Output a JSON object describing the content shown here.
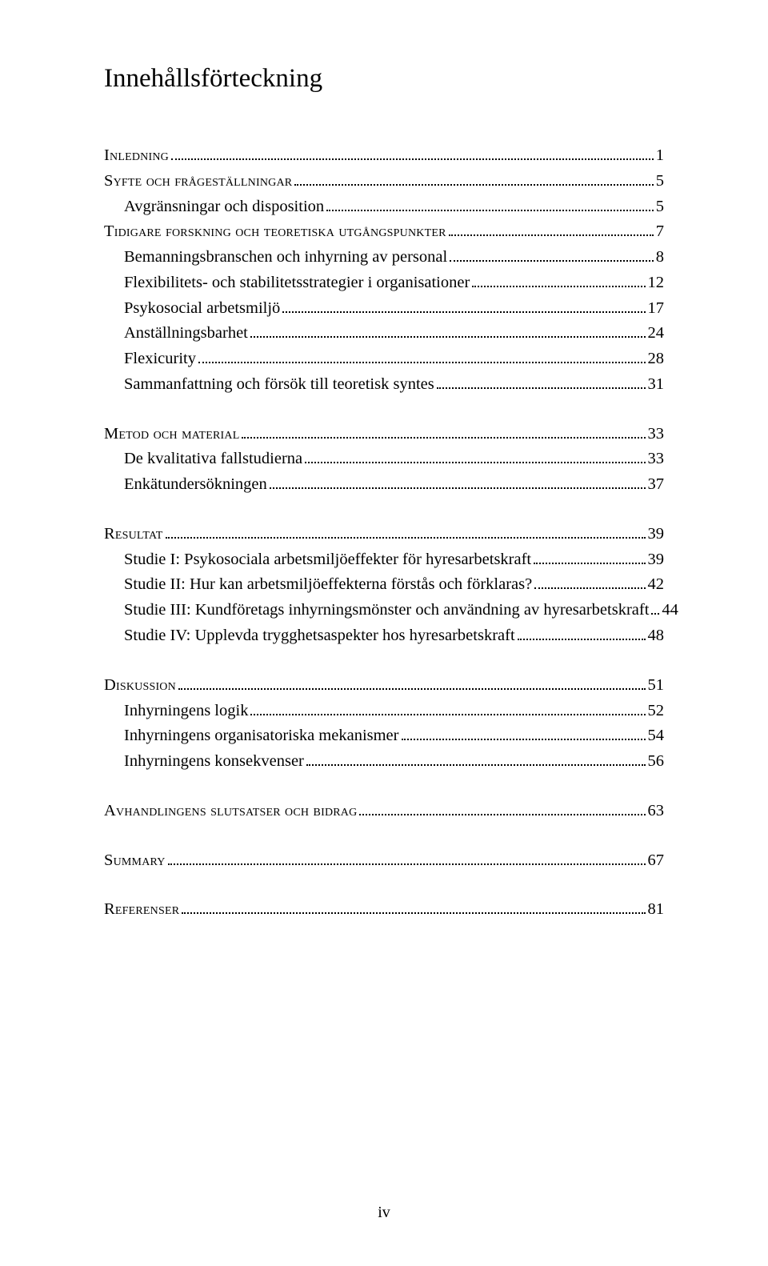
{
  "title": "Innehållsförteckning",
  "footer": "iv",
  "entries": [
    {
      "level": 1,
      "smallcaps": true,
      "label": "Inledning",
      "page": "1",
      "gapBefore": false
    },
    {
      "level": 1,
      "smallcaps": true,
      "label": "Syfte och frågeställningar",
      "page": "5",
      "gapBefore": false
    },
    {
      "level": 2,
      "smallcaps": false,
      "label": "Avgränsningar och disposition",
      "page": "5",
      "gapBefore": false
    },
    {
      "level": 1,
      "smallcaps": true,
      "label": "Tidigare forskning och teoretiska utgångspunkter",
      "page": "7",
      "gapBefore": false
    },
    {
      "level": 2,
      "smallcaps": false,
      "label": "Bemanningsbranschen och inhyrning av personal",
      "page": "8",
      "gapBefore": false
    },
    {
      "level": 2,
      "smallcaps": false,
      "label": "Flexibilitets- och stabilitetsstrategier i organisationer",
      "page": "12",
      "gapBefore": false
    },
    {
      "level": 2,
      "smallcaps": false,
      "label": "Psykosocial arbetsmiljö",
      "page": "17",
      "gapBefore": false
    },
    {
      "level": 2,
      "smallcaps": false,
      "label": "Anställningsbarhet",
      "page": "24",
      "gapBefore": false
    },
    {
      "level": 2,
      "smallcaps": false,
      "label": "Flexicurity",
      "page": "28",
      "gapBefore": false
    },
    {
      "level": 2,
      "smallcaps": false,
      "label": "Sammanfattning och försök till teoretisk syntes",
      "page": "31",
      "gapBefore": false
    },
    {
      "level": 1,
      "smallcaps": true,
      "label": "Metod och material",
      "page": "33",
      "gapBefore": true
    },
    {
      "level": 2,
      "smallcaps": false,
      "label": "De kvalitativa fallstudierna",
      "page": "33",
      "gapBefore": false
    },
    {
      "level": 2,
      "smallcaps": false,
      "label": "Enkätundersökningen",
      "page": "37",
      "gapBefore": false
    },
    {
      "level": 1,
      "smallcaps": true,
      "label": "Resultat",
      "page": "39",
      "gapBefore": true
    },
    {
      "level": 2,
      "smallcaps": false,
      "label": "Studie I: Psykosociala arbetsmiljöeffekter för hyresarbetskraft",
      "page": "39",
      "gapBefore": false
    },
    {
      "level": 2,
      "smallcaps": false,
      "label": "Studie II: Hur kan arbetsmiljöeffekterna förstås och förklaras?",
      "page": "42",
      "gapBefore": false
    },
    {
      "level": 2,
      "smallcaps": false,
      "label": "Studie III: Kundföretags inhyrningsmönster och användning av hyresarbetskraft",
      "page": "44",
      "gapBefore": false
    },
    {
      "level": 2,
      "smallcaps": false,
      "label": "Studie IV: Upplevda trygghetsaspekter hos hyresarbetskraft",
      "page": "48",
      "gapBefore": false
    },
    {
      "level": 1,
      "smallcaps": true,
      "label": "Diskussion",
      "page": "51",
      "gapBefore": true
    },
    {
      "level": 2,
      "smallcaps": false,
      "label": "Inhyrningens logik",
      "page": "52",
      "gapBefore": false
    },
    {
      "level": 2,
      "smallcaps": false,
      "label": "Inhyrningens organisatoriska mekanismer",
      "page": "54",
      "gapBefore": false
    },
    {
      "level": 2,
      "smallcaps": false,
      "label": "Inhyrningens konsekvenser",
      "page": "56",
      "gapBefore": false
    },
    {
      "level": 1,
      "smallcaps": true,
      "label": "Avhandlingens slutsatser och bidrag",
      "page": "63",
      "gapBefore": true
    },
    {
      "level": 1,
      "smallcaps": true,
      "label": "Summary",
      "page": "67",
      "gapBefore": true
    },
    {
      "level": 1,
      "smallcaps": true,
      "label": "Referenser",
      "page": "81",
      "gapBefore": true
    }
  ]
}
